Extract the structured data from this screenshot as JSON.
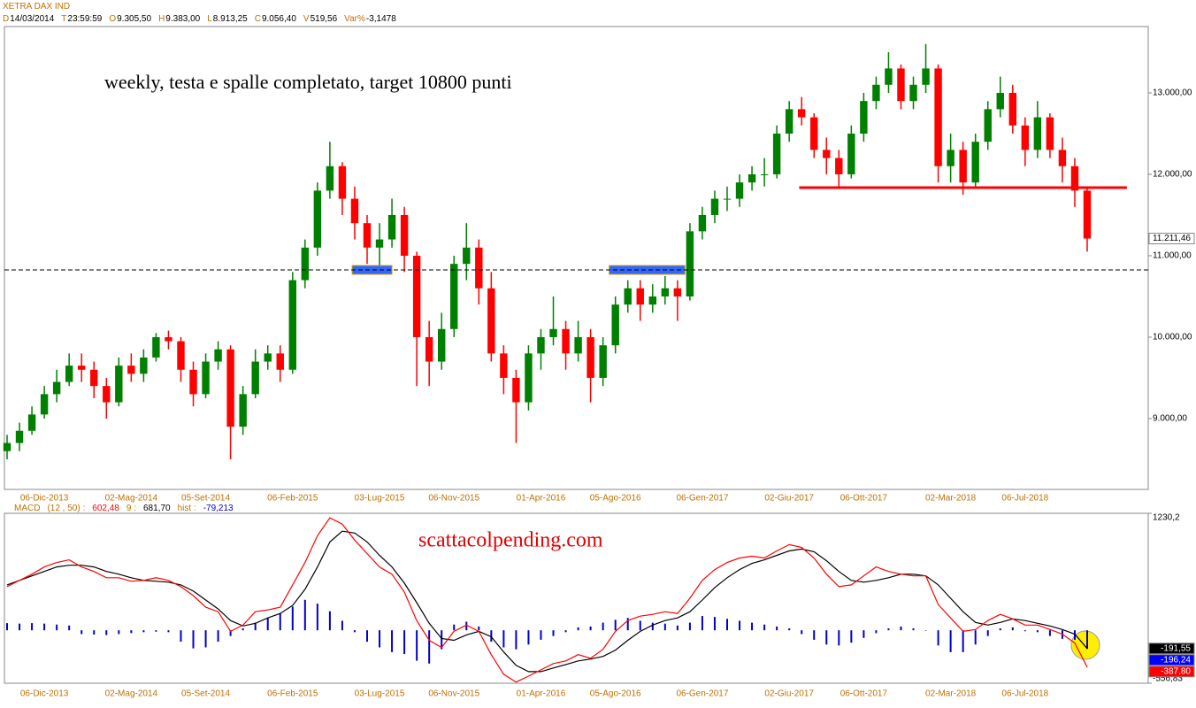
{
  "header": {
    "instrument": "XETRA DAX IND",
    "fields": [
      {
        "key": "D",
        "value": "14/03/2014"
      },
      {
        "key": "T",
        "value": "23:59:59"
      },
      {
        "key": "O",
        "value": "9.305,50"
      },
      {
        "key": "H",
        "value": "9.383,00"
      },
      {
        "key": "L",
        "value": "8.913,25"
      },
      {
        "key": "C",
        "value": "9.056,40"
      },
      {
        "key": "V",
        "value": "519,56"
      },
      {
        "key": "Var%",
        "value": "-3,1478"
      }
    ],
    "macd_items": [
      {
        "text": "MACD",
        "color": "#c07000"
      },
      {
        "text": "(12 , 50) :",
        "color": "#c07000"
      },
      {
        "text": "602,48",
        "color": "#ff0000"
      },
      {
        "text": "9 :",
        "color": "#c07000"
      },
      {
        "text": "681,70",
        "color": "#000000"
      },
      {
        "text": "hist :",
        "color": "#c07000"
      },
      {
        "text": "-79,213",
        "color": "#0000cc"
      }
    ]
  },
  "chart_data": [
    {
      "type": "candlestick",
      "title": "weekly, testa e spalle completato, target 10800 punti",
      "categories": [
        null,
        null,
        null,
        "06-Dic-2013",
        null,
        null,
        null,
        null,
        null,
        null,
        "02-Mag-2014",
        null,
        null,
        null,
        null,
        null,
        "05-Set-2014",
        null,
        null,
        null,
        null,
        null,
        null,
        "06-Feb-2015",
        null,
        null,
        null,
        null,
        null,
        null,
        "03-Lug-2015",
        null,
        null,
        null,
        null,
        null,
        "06-Nov-2015",
        null,
        null,
        null,
        null,
        null,
        null,
        "01-Apr-2016",
        null,
        null,
        null,
        null,
        null,
        "05-Ago-2016",
        null,
        null,
        null,
        null,
        null,
        null,
        "06-Gen-2017",
        null,
        null,
        null,
        null,
        null,
        null,
        "02-Giu-2017",
        null,
        null,
        null,
        null,
        null,
        "06-Ott-2017",
        null,
        null,
        null,
        null,
        null,
        null,
        "02-Mar-2018",
        null,
        null,
        null,
        null,
        null,
        "06-Jul-2018",
        null,
        null,
        null,
        null,
        null
      ],
      "candles": [
        [
          8600,
          8800,
          8500,
          8700
        ],
        [
          8700,
          8950,
          8600,
          8850
        ],
        [
          8850,
          9150,
          8800,
          9050
        ],
        [
          9050,
          9400,
          9000,
          9300
        ],
        [
          9300,
          9600,
          9200,
          9450
        ],
        [
          9450,
          9800,
          9400,
          9650
        ],
        [
          9650,
          9800,
          9450,
          9600
        ],
        [
          9600,
          9700,
          9250,
          9400
        ],
        [
          9400,
          9500,
          9000,
          9200
        ],
        [
          9200,
          9750,
          9150,
          9650
        ],
        [
          9650,
          9800,
          9450,
          9550
        ],
        [
          9550,
          9850,
          9450,
          9750
        ],
        [
          9750,
          10050,
          9700,
          10000
        ],
        [
          10000,
          10080,
          9850,
          9950
        ],
        [
          9950,
          10000,
          9450,
          9600
        ],
        [
          9600,
          9700,
          9150,
          9300
        ],
        [
          9300,
          9800,
          9250,
          9700
        ],
        [
          9700,
          9950,
          9600,
          9850
        ],
        [
          9850,
          9900,
          8500,
          8900
        ],
        [
          8900,
          9400,
          8800,
          9300
        ],
        [
          9300,
          9850,
          9250,
          9700
        ],
        [
          9700,
          9900,
          9600,
          9800
        ],
        [
          9800,
          9900,
          9450,
          9600
        ],
        [
          9600,
          10800,
          9550,
          10700
        ],
        [
          10700,
          11200,
          10600,
          11100
        ],
        [
          11100,
          11900,
          11000,
          11800
        ],
        [
          11800,
          12400,
          11700,
          12100
        ],
        [
          12100,
          12150,
          11500,
          11700
        ],
        [
          11700,
          11850,
          11200,
          11400
        ],
        [
          11400,
          11500,
          10900,
          11100
        ],
        [
          11100,
          11400,
          10800,
          11200
        ],
        [
          11200,
          11700,
          11100,
          11500
        ],
        [
          11500,
          11600,
          10800,
          11000
        ],
        [
          11000,
          11050,
          9400,
          10000
        ],
        [
          10000,
          10200,
          9400,
          9700
        ],
        [
          9700,
          10300,
          9600,
          10100
        ],
        [
          10100,
          11000,
          10000,
          10900
        ],
        [
          10900,
          11400,
          10700,
          11100
        ],
        [
          11100,
          11200,
          10400,
          10600
        ],
        [
          10600,
          10800,
          9700,
          9800
        ],
        [
          9800,
          9900,
          9300,
          9500
        ],
        [
          9500,
          9600,
          8700,
          9200
        ],
        [
          9200,
          9900,
          9100,
          9800
        ],
        [
          9800,
          10100,
          9600,
          10000
        ],
        [
          10000,
          10500,
          9900,
          10100
        ],
        [
          10100,
          10200,
          9600,
          9800
        ],
        [
          9800,
          10200,
          9700,
          10000
        ],
        [
          10000,
          10100,
          9200,
          9500
        ],
        [
          9500,
          10000,
          9400,
          9900
        ],
        [
          9900,
          10500,
          9800,
          10400
        ],
        [
          10400,
          10700,
          10300,
          10600
        ],
        [
          10600,
          10700,
          10200,
          10400
        ],
        [
          10400,
          10650,
          10300,
          10500
        ],
        [
          10500,
          10750,
          10400,
          10600
        ],
        [
          10600,
          10700,
          10200,
          10500
        ],
        [
          10500,
          11400,
          10450,
          11300
        ],
        [
          11300,
          11600,
          11200,
          11500
        ],
        [
          11500,
          11800,
          11400,
          11700
        ],
        [
          11700,
          11850,
          11550,
          11700
        ],
        [
          11700,
          12000,
          11600,
          11900
        ],
        [
          11900,
          12100,
          11800,
          12000
        ],
        [
          12000,
          12200,
          11850,
          12000
        ],
        [
          12000,
          12600,
          11950,
          12500
        ],
        [
          12500,
          12900,
          12400,
          12800
        ],
        [
          12800,
          12950,
          12600,
          12700
        ],
        [
          12700,
          12750,
          12200,
          12300
        ],
        [
          12300,
          12450,
          12000,
          12200
        ],
        [
          12200,
          12300,
          11850,
          12000
        ],
        [
          12000,
          12600,
          11950,
          12500
        ],
        [
          12500,
          13000,
          12400,
          12900
        ],
        [
          12900,
          13200,
          12800,
          13100
        ],
        [
          13100,
          13500,
          13000,
          13300
        ],
        [
          13300,
          13350,
          12800,
          12900
        ],
        [
          12900,
          13200,
          12800,
          13100
        ],
        [
          13100,
          13600,
          13000,
          13300
        ],
        [
          13300,
          13350,
          11900,
          12100
        ],
        [
          12100,
          12500,
          11900,
          12300
        ],
        [
          12300,
          12400,
          11750,
          11900
        ],
        [
          11900,
          12500,
          11850,
          12400
        ],
        [
          12400,
          12900,
          12300,
          12800
        ],
        [
          12800,
          13200,
          12700,
          13000
        ],
        [
          13000,
          13100,
          12500,
          12600
        ],
        [
          12600,
          12700,
          12100,
          12300
        ],
        [
          12300,
          12900,
          12200,
          12700
        ],
        [
          12700,
          12750,
          12200,
          12300
        ],
        [
          12300,
          12450,
          11900,
          12100
        ],
        [
          12100,
          12200,
          11600,
          11800
        ],
        [
          11800,
          11850,
          11050,
          11211.46
        ]
      ],
      "colors": {
        "up": "#008000",
        "down": "#ff0000"
      },
      "ylim": [
        8130,
        13815
      ],
      "yticks": [
        {
          "value": 9000,
          "label": "9.000,00"
        },
        {
          "value": 10000,
          "label": "10.000,00"
        },
        {
          "value": 11000,
          "label": "11.000,00"
        },
        {
          "value": 12000,
          "label": "12.000,00"
        },
        {
          "value": 13000,
          "label": "13.000,00"
        }
      ],
      "zones": [
        {
          "xlim": [
            27.8,
            31.0
          ],
          "ylim": [
            10772,
            10880
          ],
          "color": "#3366ff"
        },
        {
          "xlim": [
            48.5,
            54.6
          ],
          "ylim": [
            10772,
            10880
          ],
          "color": "#3366ff"
        }
      ],
      "levels": [
        {
          "y": 10826,
          "color": "#000000",
          "dashed": true
        },
        {
          "y": 11837,
          "xlim": [
            63.8,
            90.2
          ],
          "color": "#ff0000",
          "dashed": false
        }
      ],
      "markers": [
        {
          "value": 11211.46,
          "label": "11.211,46",
          "color": "#ffffff",
          "text_color": "#000000"
        }
      ]
    },
    {
      "type": "line",
      "annotation": "scattacolpending.com",
      "categories": [
        null,
        null,
        null,
        "06-Dic-2013",
        null,
        null,
        null,
        null,
        null,
        null,
        "02-Mag-2014",
        null,
        null,
        null,
        null,
        null,
        "05-Set-2014",
        null,
        null,
        null,
        null,
        null,
        null,
        "06-Feb-2015",
        null,
        null,
        null,
        null,
        null,
        null,
        "03-Lug-2015",
        null,
        null,
        null,
        null,
        null,
        "06-Nov-2015",
        null,
        null,
        null,
        null,
        null,
        null,
        "01-Apr-2016",
        null,
        null,
        null,
        null,
        null,
        "05-Ago-2016",
        null,
        null,
        null,
        null,
        null,
        null,
        "06-Gen-2017",
        null,
        null,
        null,
        null,
        null,
        null,
        "02-Giu-2017",
        null,
        null,
        null,
        null,
        null,
        "06-Ott-2017",
        null,
        null,
        null,
        null,
        null,
        null,
        "02-Mar-2018",
        null,
        null,
        null,
        null,
        null,
        "06-Jul-2018",
        null,
        null,
        null,
        null,
        null
      ],
      "ylim": [
        -556.83,
        1230.2
      ],
      "yticks": [
        {
          "value": 1230.2,
          "label": "1230,2"
        },
        {
          "value": -556.83,
          "label": "-556,83"
        }
      ],
      "series": [
        {
          "name": "hist",
          "kind": "histogram",
          "color": "#0000cc",
          "values": [
            75,
            70,
            75,
            70,
            60,
            50,
            -40,
            -45,
            -50,
            -40,
            -30,
            -20,
            -15,
            -20,
            -120,
            -190,
            -180,
            -120,
            -60,
            20,
            80,
            130,
            180,
            250,
            320,
            280,
            200,
            100,
            -20,
            -120,
            -180,
            -230,
            -250,
            -320,
            -350,
            -200,
            60,
            90,
            40,
            -120,
            -180,
            -200,
            -150,
            -100,
            -60,
            -20,
            30,
            40,
            80,
            110,
            130,
            100,
            80,
            70,
            50,
            80,
            150,
            140,
            120,
            100,
            80,
            60,
            40,
            20,
            -40,
            -100,
            -150,
            -160,
            -130,
            -80,
            -30,
            20,
            40,
            20,
            0,
            -160,
            -230,
            -230,
            -150,
            -60,
            20,
            30,
            -10,
            -20,
            -60,
            -90,
            -100,
            -196.24
          ]
        },
        {
          "kind": "line",
          "color": "#000000",
          "values": [
            477,
            525,
            572,
            619,
            666,
            684,
            684,
            666,
            619,
            590,
            553,
            525,
            515,
            506,
            477,
            412,
            318,
            224,
            102,
            45,
            73,
            130,
            177,
            261,
            431,
            666,
            929,
            1042,
            1023,
            929,
            788,
            666,
            496,
            290,
            73,
            -87,
            -105,
            -49,
            -11,
            -68,
            -228,
            -369,
            -435,
            -435,
            -397,
            -360,
            -322,
            -303,
            -275,
            -209,
            -105,
            -11,
            55,
            102,
            130,
            195,
            318,
            449,
            553,
            638,
            703,
            741,
            788,
            835,
            854,
            826,
            731,
            619,
            525,
            506,
            525,
            553,
            590,
            590,
            572,
            477,
            337,
            195,
            83,
            55,
            83,
            120,
            102,
            73,
            45,
            8,
            -40,
            -191.55
          ]
        },
        {
          "name": "MACD",
          "kind": "line",
          "color": "#ff0000",
          "values": [
            459,
            525,
            590,
            666,
            713,
            741,
            666,
            619,
            553,
            553,
            515,
            525,
            553,
            525,
            459,
            365,
            243,
            195,
            -11,
            55,
            195,
            214,
            243,
            477,
            713,
            995,
            1183,
            1117,
            948,
            807,
            666,
            590,
            402,
            102,
            -105,
            -181,
            -11,
            55,
            -11,
            -256,
            -463,
            -545,
            -482,
            -416,
            -350,
            -322,
            -256,
            -294,
            -199,
            -11,
            102,
            149,
            167,
            195,
            177,
            337,
            525,
            638,
            713,
            760,
            779,
            760,
            835,
            901,
            872,
            760,
            590,
            459,
            477,
            572,
            666,
            619,
            590,
            572,
            572,
            271,
            130,
            -11,
            8,
            102,
            167,
            120,
            55,
            55,
            8,
            -40,
            -134,
            -387.8
          ]
        }
      ],
      "markers": [
        {
          "value": -191.55,
          "label": "-191,55",
          "color": "#000000",
          "text_color": "#ffffff"
        },
        {
          "value": -196.24,
          "label": "-196,24",
          "color": "#0000ff",
          "text_color": "#ffffff"
        },
        {
          "value": -387.8,
          "label": "-387,80",
          "color": "#ff0000",
          "text_color": "#ffffff"
        }
      ]
    }
  ]
}
